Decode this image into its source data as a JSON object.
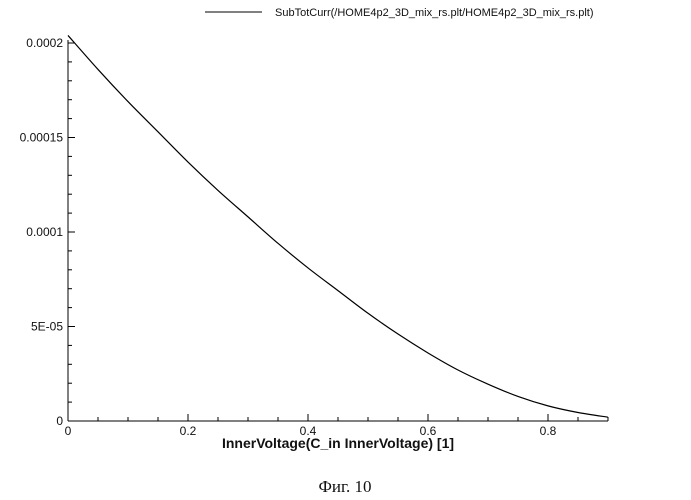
{
  "chart_data": {
    "type": "line",
    "xlabel": "InnerVoltage(C_in InnerVoltage) [1]",
    "ylabel": "",
    "xlim": [
      0,
      0.9
    ],
    "ylim": [
      0,
      0.0002
    ],
    "grid": false,
    "legend_position": "top-right",
    "x_ticks": [
      0,
      0.2,
      0.4,
      0.6,
      0.8
    ],
    "x_tick_labels": [
      "0",
      "0.2",
      "0.4",
      "0.6",
      "0.8"
    ],
    "y_ticks": [
      0,
      5e-05,
      0.0001,
      0.00015,
      0.0002
    ],
    "y_tick_labels": [
      "0",
      "5E-05",
      "0.0001",
      "0.00015",
      "0.0002"
    ],
    "series": [
      {
        "name": "SubTotCurr(/HOME4p2_3D_mix_rs.plt/HOME4p2_3D_mix_rs.plt)",
        "color": "#000000",
        "x": [
          0,
          0.05,
          0.1,
          0.15,
          0.2,
          0.25,
          0.3,
          0.35,
          0.4,
          0.45,
          0.5,
          0.55,
          0.6,
          0.65,
          0.7,
          0.75,
          0.8,
          0.85,
          0.9
        ],
        "y": [
          0.000204,
          0.000186,
          0.000169,
          0.000153,
          0.000137,
          0.000122,
          0.000108,
          9.4e-05,
          8.1e-05,
          6.9e-05,
          5.7e-05,
          4.6e-05,
          3.6e-05,
          2.7e-05,
          1.95e-05,
          1.3e-05,
          8e-06,
          4.5e-06,
          2e-06
        ]
      }
    ]
  },
  "caption": "Фиг. 10"
}
